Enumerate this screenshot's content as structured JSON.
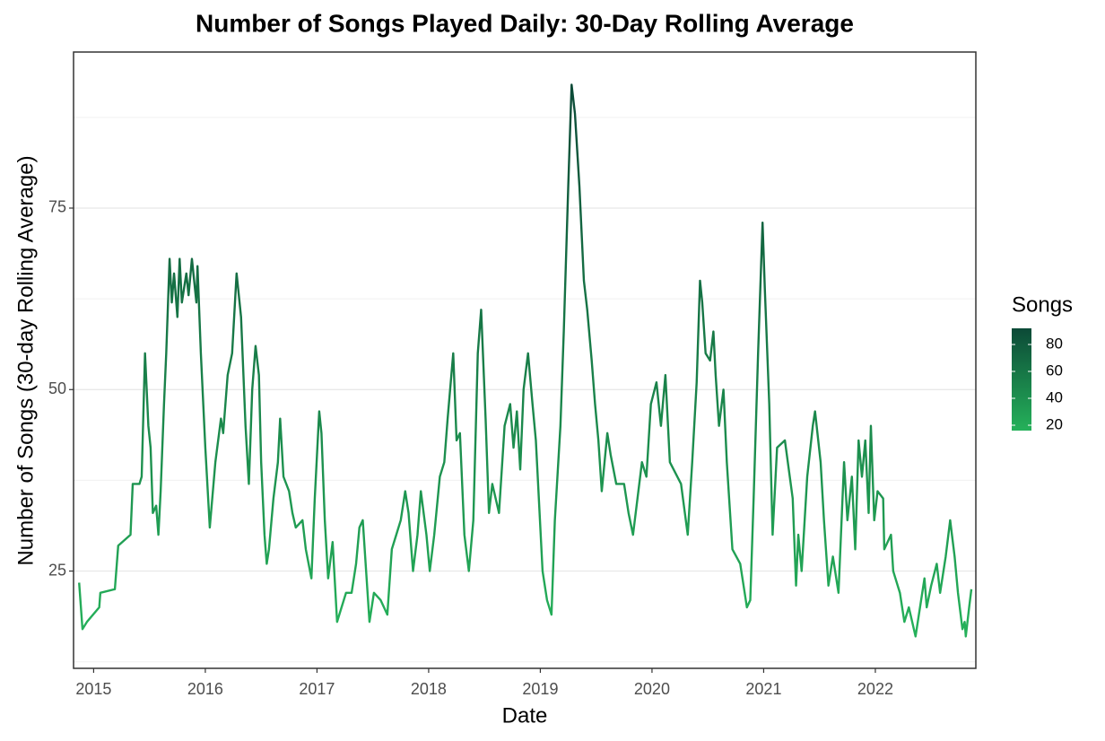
{
  "chart_data": {
    "type": "line",
    "title": "Number of Songs Played Daily: 30-Day Rolling Average",
    "x_label": "Date",
    "y_label": "Number of Songs (30-day Rolling Average)",
    "legend_title": "Songs",
    "legend_ticks": [
      20,
      40,
      60,
      80
    ],
    "color_low": "#25b15a",
    "color_high": "#0c4a37",
    "xlim": [
      2014.82,
      2022.9
    ],
    "ylim": [
      11.6,
      96.5
    ],
    "xticks": [
      2015,
      2016,
      2017,
      2018,
      2019,
      2020,
      2021,
      2022
    ],
    "yticks": [
      25,
      50,
      75
    ],
    "minor_yticks": [
      12.5,
      37.5,
      62.5,
      87.5
    ],
    "grid": true,
    "x": [
      2014.87,
      2014.9,
      2014.94,
      2015.05,
      2015.06,
      2015.19,
      2015.22,
      2015.33,
      2015.35,
      2015.41,
      2015.43,
      2015.46,
      2015.49,
      2015.51,
      2015.53,
      2015.56,
      2015.58,
      2015.6,
      2015.63,
      2015.65,
      2015.68,
      2015.7,
      2015.72,
      2015.75,
      2015.77,
      2015.79,
      2015.83,
      2015.85,
      2015.88,
      2015.92,
      2015.93,
      2015.96,
      2016.0,
      2016.04,
      2016.09,
      2016.14,
      2016.16,
      2016.2,
      2016.24,
      2016.28,
      2016.32,
      2016.36,
      2016.39,
      2016.42,
      2016.45,
      2016.48,
      2016.5,
      2016.53,
      2016.55,
      2016.57,
      2016.61,
      2016.65,
      2016.67,
      2016.7,
      2016.75,
      2016.78,
      2016.81,
      2016.87,
      2016.9,
      2016.95,
      2016.98,
      2017.02,
      2017.04,
      2017.07,
      2017.1,
      2017.14,
      2017.18,
      2017.22,
      2017.26,
      2017.31,
      2017.35,
      2017.38,
      2017.41,
      2017.44,
      2017.47,
      2017.51,
      2017.57,
      2017.6,
      2017.63,
      2017.67,
      2017.71,
      2017.75,
      2017.79,
      2017.82,
      2017.86,
      2017.9,
      2017.93,
      2017.98,
      2018.01,
      2018.05,
      2018.1,
      2018.14,
      2018.17,
      2018.22,
      2018.25,
      2018.28,
      2018.32,
      2018.36,
      2018.4,
      2018.44,
      2018.47,
      2018.51,
      2018.54,
      2018.57,
      2018.63,
      2018.68,
      2018.73,
      2018.76,
      2018.79,
      2018.82,
      2018.85,
      2018.89,
      2018.93,
      2018.96,
      2018.98,
      2019.02,
      2019.06,
      2019.1,
      2019.13,
      2019.18,
      2019.21,
      2019.25,
      2019.28,
      2019.31,
      2019.35,
      2019.39,
      2019.42,
      2019.46,
      2019.49,
      2019.52,
      2019.55,
      2019.6,
      2019.63,
      2019.68,
      2019.75,
      2019.79,
      2019.83,
      2019.87,
      2019.91,
      2019.95,
      2019.99,
      2020.04,
      2020.08,
      2020.12,
      2020.16,
      2020.26,
      2020.32,
      2020.36,
      2020.4,
      2020.43,
      2020.45,
      2020.48,
      2020.52,
      2020.55,
      2020.57,
      2020.6,
      2020.64,
      2020.67,
      2020.72,
      2020.79,
      2020.85,
      2020.88,
      2020.91,
      2020.95,
      2020.99,
      2021.01,
      2021.05,
      2021.08,
      2021.12,
      2021.19,
      2021.26,
      2021.29,
      2021.31,
      2021.34,
      2021.39,
      2021.44,
      2021.46,
      2021.51,
      2021.54,
      2021.58,
      2021.62,
      2021.67,
      2021.72,
      2021.75,
      2021.79,
      2021.82,
      2021.85,
      2021.88,
      2021.91,
      2021.94,
      2021.96,
      2021.99,
      2022.02,
      2022.07,
      2022.08,
      2022.14,
      2022.16,
      2022.22,
      2022.26,
      2022.3,
      2022.36,
      2022.4,
      2022.44,
      2022.46,
      2022.5,
      2022.55,
      2022.58,
      2022.63,
      2022.67,
      2022.71,
      2022.74,
      2022.78,
      2022.8,
      2022.81,
      2022.84,
      2022.86
    ],
    "values": [
      23.4,
      17,
      18,
      20,
      22,
      22.5,
      28.5,
      30,
      37,
      37,
      38,
      55,
      45,
      42,
      33,
      34,
      30,
      36,
      48,
      55,
      68,
      62,
      66,
      60,
      68,
      62,
      66,
      63,
      68,
      62,
      67,
      55,
      42,
      31,
      40,
      46,
      44,
      52,
      55,
      66,
      60,
      45,
      37,
      50,
      56,
      52,
      40,
      30,
      26,
      28,
      35,
      40,
      46,
      38,
      36,
      33,
      31,
      32,
      28,
      24,
      35,
      47,
      44,
      32,
      24,
      29,
      18,
      20,
      22,
      22,
      26,
      31,
      32,
      25,
      18,
      22,
      21,
      20,
      19,
      28,
      30,
      32,
      36,
      33,
      25,
      30,
      36,
      30,
      25,
      30,
      38,
      40,
      46,
      55,
      43,
      44,
      30,
      25,
      32,
      55,
      61,
      46,
      33,
      37,
      33,
      45,
      48,
      42,
      47,
      39,
      50,
      55,
      48,
      43,
      37,
      25,
      21,
      19,
      32,
      45,
      58,
      78,
      92,
      88,
      78,
      65,
      61,
      54,
      48,
      43,
      36,
      44,
      41,
      37,
      37,
      33,
      30,
      35,
      40,
      38,
      48,
      51,
      45,
      52,
      40,
      37,
      30,
      40,
      51,
      65,
      62,
      55,
      54,
      58,
      52,
      45,
      50,
      40,
      28,
      26,
      20,
      21,
      35,
      55,
      73,
      64,
      48,
      30,
      42,
      43,
      35,
      23,
      30,
      25,
      38,
      45,
      47,
      40,
      32,
      23,
      27,
      22,
      40,
      32,
      38,
      28,
      43,
      38,
      43,
      33,
      45,
      32,
      36,
      35,
      28,
      30,
      25,
      22,
      18,
      20,
      16,
      20,
      24,
      20,
      23,
      26,
      22,
      27,
      32,
      27,
      22,
      17,
      18,
      16,
      20,
      22.5
    ]
  }
}
